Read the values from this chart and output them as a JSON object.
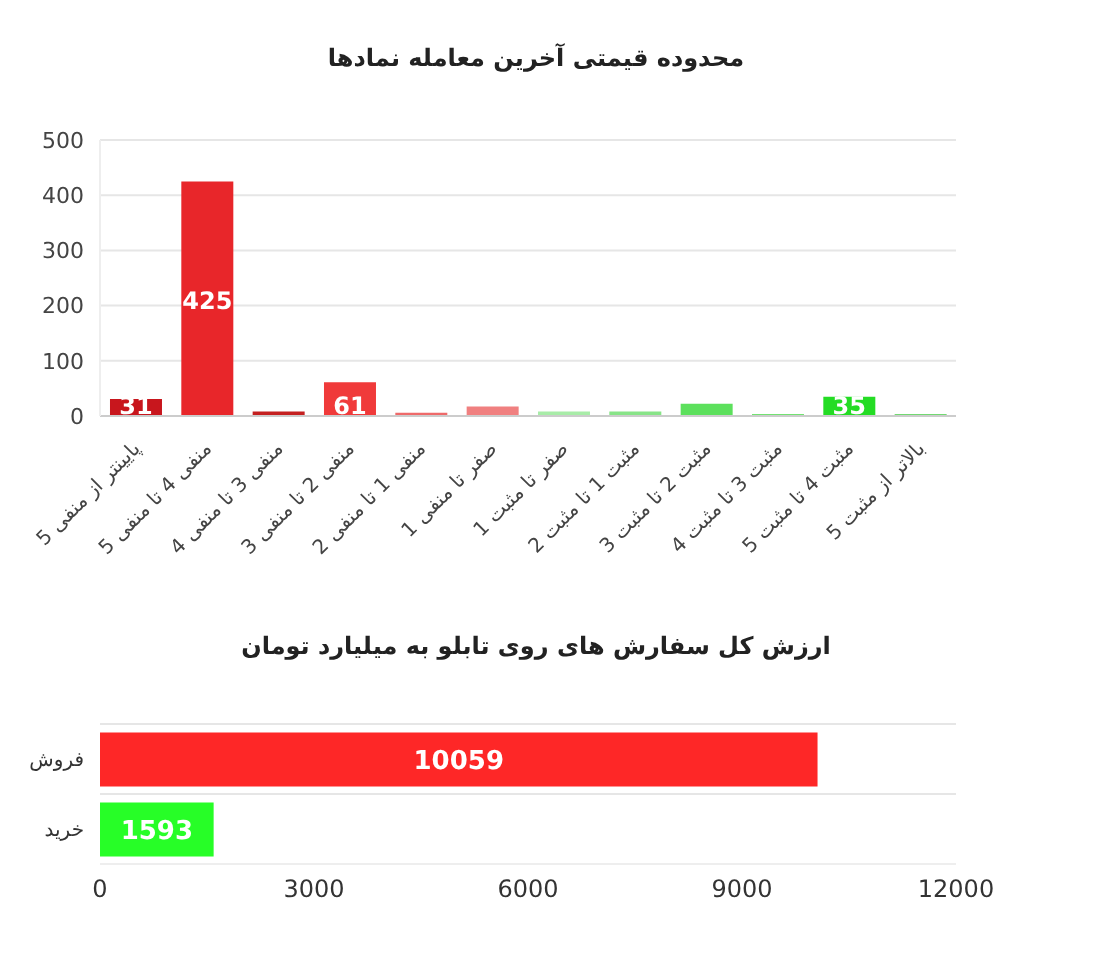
{
  "chart_data": [
    {
      "type": "bar",
      "title": "محدوده قیمتی آخرین معامله نمادها",
      "categories": [
        "پایینتر از منفی 5",
        "منفی 4 تا منفی 5",
        "منفی 3 تا منفی 4",
        "منفی 2 تا منفی 3",
        "منفی 1 تا منفی 2",
        "صفر تا منفی 1",
        "صفر تا مثبت 1",
        "مثبت 1 تا مثبت 2",
        "مثبت 2 تا مثبت 3",
        "مثبت 3 تا مثبت 4",
        "مثبت 4 تا مثبت 5",
        "بالاتر از مثبت 5"
      ],
      "values": [
        31,
        425,
        8,
        61,
        6,
        17,
        8,
        8,
        22,
        3,
        35,
        3
      ],
      "value_labels": [
        "31",
        "425",
        null,
        "61",
        null,
        null,
        null,
        null,
        null,
        null,
        "35",
        null
      ],
      "colors": [
        "#c8161d",
        "#e8262a",
        "#c42020",
        "#f03a3a",
        "#ee6a6a",
        "#f08080",
        "#a8eca8",
        "#88e488",
        "#5ce05c",
        "#44d844",
        "#24dc24",
        "#44cc44"
      ],
      "ylim": [
        0,
        500
      ],
      "yticks": [
        0,
        100,
        200,
        300,
        400,
        500
      ],
      "grid": "y"
    },
    {
      "type": "bar",
      "orientation": "horizontal",
      "title": "ارزش کل سفارش های روی تابلو به میلیارد تومان",
      "categories": [
        "فروش",
        "خرید"
      ],
      "values": [
        10059,
        1593
      ],
      "colors": [
        "#fe2727",
        "#27fe27"
      ],
      "xlim": [
        0,
        12000
      ],
      "xticks": [
        0,
        3000,
        6000,
        9000,
        12000
      ],
      "grid": "y",
      "data_labels": true
    }
  ]
}
